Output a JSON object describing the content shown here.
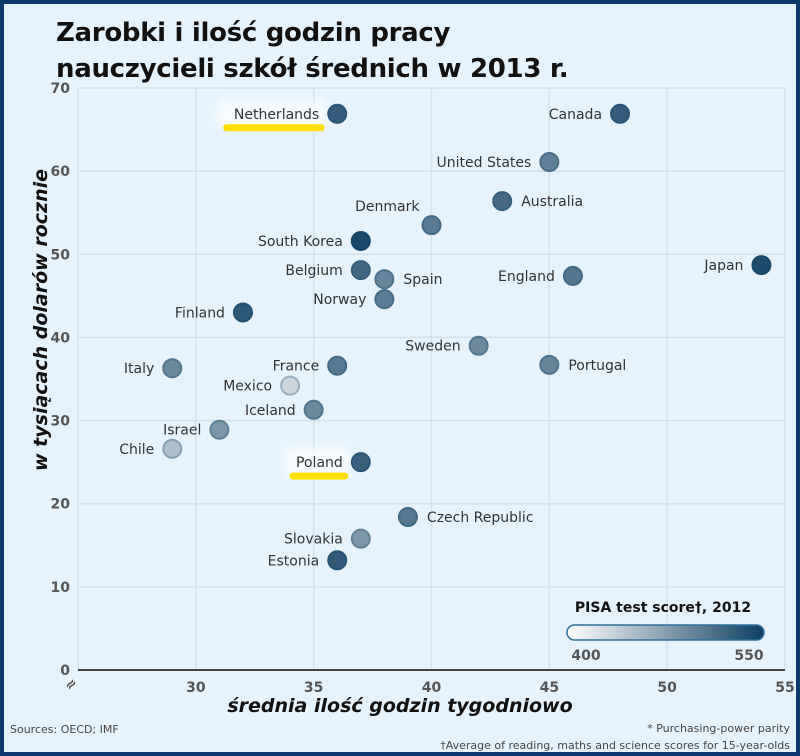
{
  "title_line1": "Zarobki i ilość godzin pracy",
  "title_line2": "nauczycieli szkół średnich w 2013 r.",
  "footer": {
    "sources": "Sources: OECD; IMF",
    "note1": "* Purchasing-power parity",
    "note2": "†Average of reading, maths and science scores for 15-year-olds"
  },
  "legend": {
    "title": "PISA test score†, 2012",
    "min_label": "400",
    "max_label": "550",
    "min_color": "#ffffff",
    "max_color": "#0e3f62"
  },
  "highlight_color": "#ffe000",
  "chart_data": {
    "type": "scatter",
    "title": "Zarobki i ilość godzin pracy nauczycieli szkół średnich w 2013 r.",
    "xlabel": "średnia ilość godzin tygodniowo",
    "ylabel": "w tysiącach dolarów rocznie",
    "xlim": [
      25,
      55
    ],
    "ylim": [
      0,
      70
    ],
    "xticks": [
      "30",
      "35",
      "40",
      "45",
      "50",
      "55"
    ],
    "yticks": [
      "0",
      "10",
      "20",
      "30",
      "40",
      "50",
      "60",
      "70"
    ],
    "grid": true,
    "color_scale": {
      "label": "PISA test score†, 2012",
      "min": 400,
      "max": 550
    },
    "highlighted": [
      "Netherlands",
      "Poland"
    ],
    "points": [
      {
        "name": "Netherlands",
        "x": 36,
        "y": 66.9,
        "pisa": 523,
        "label_side": "left"
      },
      {
        "name": "Canada",
        "x": 48,
        "y": 66.9,
        "pisa": 523,
        "label_side": "left"
      },
      {
        "name": "United States",
        "x": 45,
        "y": 61.1,
        "pisa": 492,
        "label_side": "left"
      },
      {
        "name": "Australia",
        "x": 43,
        "y": 56.4,
        "pisa": 512,
        "label_side": "right"
      },
      {
        "name": "Denmark",
        "x": 40,
        "y": 53.5,
        "pisa": 498,
        "label_side": "topleft"
      },
      {
        "name": "South Korea",
        "x": 37,
        "y": 51.6,
        "pisa": 542,
        "label_side": "left"
      },
      {
        "name": "Belgium",
        "x": 37,
        "y": 48.1,
        "pisa": 513,
        "label_side": "left"
      },
      {
        "name": "Spain",
        "x": 38,
        "y": 47.0,
        "pisa": 488,
        "label_side": "right"
      },
      {
        "name": "England",
        "x": 46,
        "y": 47.4,
        "pisa": 500,
        "label_side": "left"
      },
      {
        "name": "Japan",
        "x": 54,
        "y": 48.7,
        "pisa": 539,
        "label_side": "left"
      },
      {
        "name": "Norway",
        "x": 38,
        "y": 44.6,
        "pisa": 496,
        "label_side": "left"
      },
      {
        "name": "Finland",
        "x": 32,
        "y": 43.0,
        "pisa": 529,
        "label_side": "left"
      },
      {
        "name": "Sweden",
        "x": 42,
        "y": 39.0,
        "pisa": 483,
        "label_side": "left"
      },
      {
        "name": "Portugal",
        "x": 45,
        "y": 36.7,
        "pisa": 488,
        "label_side": "right"
      },
      {
        "name": "Italy",
        "x": 29,
        "y": 36.3,
        "pisa": 485,
        "label_side": "left"
      },
      {
        "name": "France",
        "x": 36,
        "y": 36.6,
        "pisa": 499,
        "label_side": "left"
      },
      {
        "name": "Mexico",
        "x": 34,
        "y": 34.2,
        "pisa": 416,
        "label_side": "left"
      },
      {
        "name": "Iceland",
        "x": 35,
        "y": 31.3,
        "pisa": 485,
        "label_side": "left"
      },
      {
        "name": "Israel",
        "x": 31,
        "y": 28.9,
        "pisa": 472,
        "label_side": "left"
      },
      {
        "name": "Chile",
        "x": 29,
        "y": 26.6,
        "pisa": 436,
        "label_side": "left"
      },
      {
        "name": "Poland",
        "x": 37,
        "y": 25.0,
        "pisa": 521,
        "label_side": "left"
      },
      {
        "name": "Czech Republic",
        "x": 39,
        "y": 18.4,
        "pisa": 500,
        "label_side": "right"
      },
      {
        "name": "Slovakia",
        "x": 37,
        "y": 15.8,
        "pisa": 472,
        "label_side": "left"
      },
      {
        "name": "Estonia",
        "x": 36,
        "y": 13.2,
        "pisa": 526,
        "label_side": "left"
      }
    ]
  }
}
